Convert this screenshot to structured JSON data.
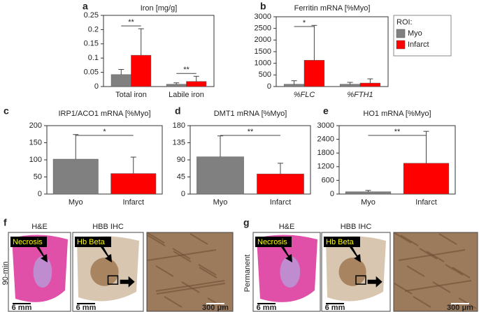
{
  "chart_data": [
    {
      "type": "bar",
      "panel": "a",
      "title": "Iron [mg/g]",
      "categories": [
        "Total iron",
        "Labile iron"
      ],
      "series": [
        {
          "name": "Myo",
          "color": "#808080",
          "values": [
            0.042,
            0.008
          ],
          "errors": [
            0.018,
            0.005
          ]
        },
        {
          "name": "Infarct",
          "color": "#ff0000",
          "values": [
            0.11,
            0.018
          ],
          "errors": [
            0.093,
            0.018
          ]
        }
      ],
      "significance": [
        "**",
        "**"
      ],
      "ylim": [
        0,
        0.25
      ],
      "yticks": [
        0,
        0.05,
        0.1,
        0.15,
        0.2,
        0.25
      ]
    },
    {
      "type": "bar",
      "panel": "b",
      "title": "Ferritin mRNA [%Myo]",
      "categories": [
        "%FLC",
        "%FTH1"
      ],
      "series": [
        {
          "name": "Myo",
          "color": "#808080",
          "values": [
            100,
            100
          ],
          "errors": [
            150,
            80
          ]
        },
        {
          "name": "Infarct",
          "color": "#ff0000",
          "values": [
            1130,
            150
          ],
          "errors": [
            1500,
            180
          ]
        }
      ],
      "significance": [
        "*"
      ],
      "legend_title": "ROI:",
      "legend": "right",
      "ylim": [
        0,
        3000
      ],
      "yticks": [
        0,
        500,
        1000,
        1500,
        2000,
        2500,
        3000
      ]
    },
    {
      "type": "bar",
      "panel": "c",
      "title": "IRP1/ACO1 mRNA [%Myo]",
      "categories": [
        "Myo",
        "Infarct"
      ],
      "values": [
        102,
        60
      ],
      "errors": [
        72,
        48
      ],
      "colors": [
        "#808080",
        "#ff0000"
      ],
      "significance": "*",
      "ylim": [
        0,
        200
      ],
      "yticks": [
        0,
        50,
        100,
        150,
        200
      ]
    },
    {
      "type": "bar",
      "panel": "d",
      "title": "DMT1 mRNA [%Myo]",
      "categories": [
        "Myo",
        "Infarct"
      ],
      "values": [
        98,
        53
      ],
      "errors": [
        55,
        28
      ],
      "colors": [
        "#808080",
        "#ff0000"
      ],
      "significance": "**",
      "ylim": [
        0,
        180
      ],
      "yticks": [
        0,
        45,
        90,
        135,
        180
      ]
    },
    {
      "type": "bar",
      "panel": "e",
      "title": "HO1 mRNA [%Myo]",
      "categories": [
        "Myo",
        "Infarct"
      ],
      "values": [
        100,
        1350
      ],
      "errors": [
        60,
        1400
      ],
      "colors": [
        "#808080",
        "#ff0000"
      ],
      "significance": "**",
      "ylim": [
        0,
        3000
      ],
      "yticks": [
        0,
        600,
        1200,
        1800,
        2400,
        3000
      ]
    }
  ],
  "images": [
    {
      "panel": "f",
      "row_label": "90-min",
      "headers": [
        "H&E",
        "HBB IHC"
      ],
      "callouts": [
        "Necrosis",
        "Hb Beta"
      ],
      "scale_bars": [
        "6 mm",
        "6 mm",
        "300 μm"
      ]
    },
    {
      "panel": "g",
      "row_label": "Permanent",
      "headers": [
        "H&E",
        "HBB IHC"
      ],
      "callouts": [
        "Necrosis",
        "Hb Beta"
      ],
      "scale_bars": [
        "6 mm",
        "6 mm",
        "300 μm"
      ]
    }
  ]
}
